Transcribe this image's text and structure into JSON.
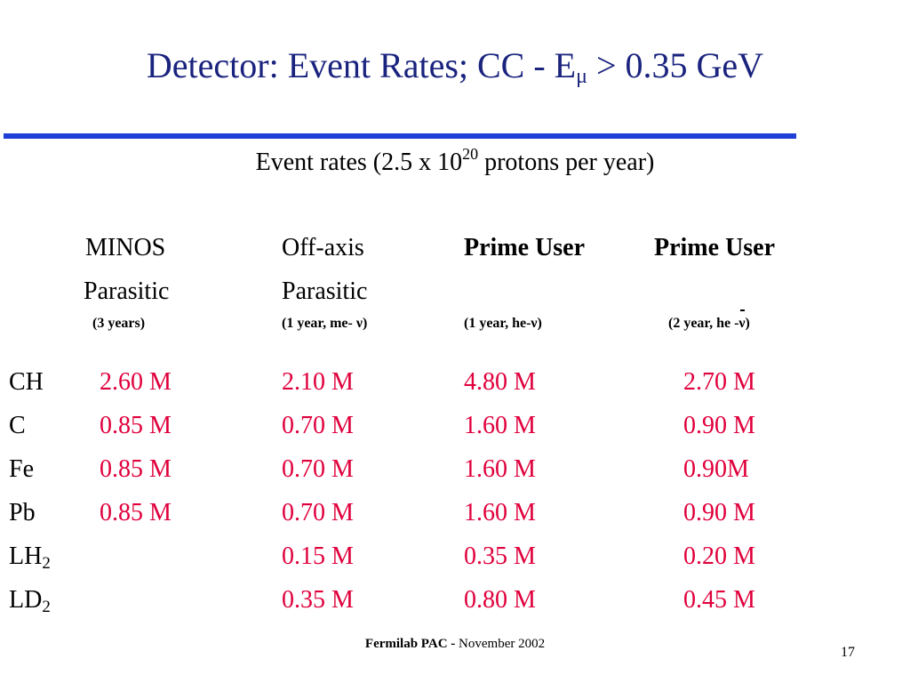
{
  "slide": {
    "title_main": "Detector: Event Rates; CC - E",
    "title_sub": "μ",
    "title_tail": " > 0.35 GeV",
    "subtitle_pre": "Event rates (2.5 x 10",
    "subtitle_sup": "20",
    "subtitle_post": " protons per year)"
  },
  "columns": [
    {
      "line1": "MINOS",
      "line2": "Parasitic",
      "note": "(3 years)"
    },
    {
      "line1": "Off-axis",
      "line2": "Parasitic",
      "note": "(1 year, me- ν)"
    },
    {
      "line1": "Prime User",
      "line2": "",
      "note": "(1 year, he-ν)"
    },
    {
      "line1": "Prime User",
      "line2": "",
      "note_pre": "(2 year, he -",
      "note_nu": "ν",
      "note_post": ")"
    }
  ],
  "rows": [
    {
      "label": "CH",
      "sub": "",
      "values": [
        "2.60 M",
        "2.10 M",
        "4.80 M",
        "2.70 M"
      ]
    },
    {
      "label": "C",
      "sub": "",
      "values": [
        "0.85 M",
        "0.70 M",
        "1.60 M",
        "0.90 M"
      ]
    },
    {
      "label": "Fe",
      "sub": "",
      "values": [
        "0.85 M",
        "0.70 M",
        "1.60 M",
        "0.90M"
      ]
    },
    {
      "label": "Pb",
      "sub": "",
      "values": [
        "0.85 M",
        "0.70 M",
        "1.60 M",
        "0.90 M"
      ]
    },
    {
      "label": "LH",
      "sub": "2",
      "values": [
        "",
        "0.15 M",
        "0.35 M",
        "0.20 M"
      ]
    },
    {
      "label": "LD",
      "sub": "2",
      "values": [
        "",
        "0.35 M",
        "0.80 M",
        "0.45 M"
      ]
    }
  ],
  "footer": {
    "bold": "Fermilab PAC - ",
    "text": " November 2002",
    "page": "17"
  },
  "colors": {
    "title": "#1a237e",
    "rule": "#1f3fd6",
    "values": "#e0003c"
  }
}
